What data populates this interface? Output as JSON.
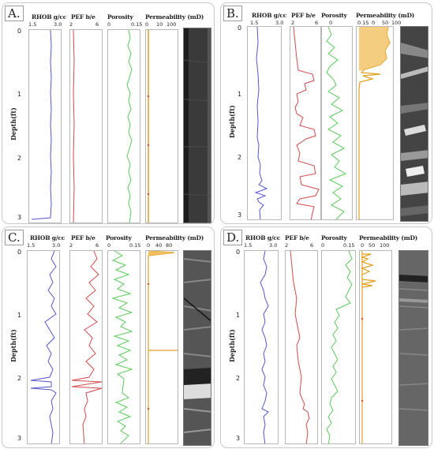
{
  "panels": [
    {
      "label": "A.",
      "depth_label": "Depth(ft)",
      "depth_ticks": [
        "0",
        "1",
        "2",
        "3"
      ],
      "tracks": [
        {
          "title": "RHOB g/cc",
          "scale": [
            "1.5",
            "3.0"
          ],
          "color": "#5555cc"
        },
        {
          "title": "PEF b/e",
          "scale": [
            "2",
            "6"
          ],
          "color": "#d24a4a"
        },
        {
          "title": "Porosity",
          "scale": [
            "0",
            "0.15"
          ],
          "color": "#5acb5a"
        },
        {
          "title": "Permeability (mD)",
          "scale": [
            "0",
            "10",
            "100"
          ],
          "color": "#e0a020"
        }
      ],
      "core": "uniform-dark"
    },
    {
      "label": "B.",
      "depth_label": "Depth(ft)",
      "depth_ticks": [
        "0",
        "1",
        "2",
        "3"
      ],
      "tracks": [
        {
          "title": "RHOB g/cc",
          "scale": [
            "1.5",
            "3.0"
          ],
          "color": "#5555cc"
        },
        {
          "title": "PEF b/e",
          "scale": [
            "2",
            "6"
          ],
          "color": "#d24a4a"
        },
        {
          "title": "Porosity",
          "scale": [
            "0",
            "0.15"
          ],
          "color": "#5acb5a"
        },
        {
          "title": "Permeability (mD)",
          "scale": [
            "0.15",
            "0",
            "50",
            "100"
          ],
          "color": "#e0a020"
        }
      ],
      "core": "banded"
    },
    {
      "label": "C.",
      "depth_label": "Depth(ft)",
      "depth_ticks": [
        "0",
        "1",
        "2",
        "3"
      ],
      "tracks": [
        {
          "title": "RHOB g/cc",
          "scale": [
            "1.5",
            "3.0"
          ],
          "color": "#5555cc"
        },
        {
          "title": "PEF b/e",
          "scale": [
            "2",
            "6"
          ],
          "color": "#d24a4a"
        },
        {
          "title": "Porosity",
          "scale": [
            "0",
            "0.15"
          ],
          "color": "#5acb5a"
        },
        {
          "title": "Permeability (mD)",
          "scale": [
            "0",
            "40",
            "80"
          ],
          "color": "#e0a020"
        }
      ],
      "core": "fractured"
    },
    {
      "label": "D.",
      "depth_label": "Depth(ft)",
      "depth_ticks": [
        "0",
        "1",
        "2",
        "3"
      ],
      "tracks": [
        {
          "title": "RHOB g/cc",
          "scale": [
            "1.5",
            "3.0"
          ],
          "color": "#5555cc"
        },
        {
          "title": "PEF b/e",
          "scale": [
            "2",
            "6"
          ],
          "color": "#d24a4a"
        },
        {
          "title": "Porosity",
          "scale": [
            "0",
            "0.15"
          ],
          "color": "#5acb5a"
        },
        {
          "title": "Permeability (mD)",
          "scale": [
            "0",
            "50",
            "100"
          ],
          "color": "#e0a020"
        }
      ],
      "core": "laminated"
    }
  ]
}
